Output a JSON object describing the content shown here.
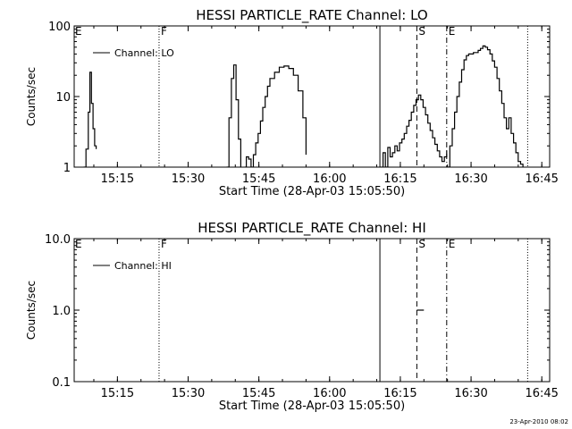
{
  "chart_data": [
    {
      "type": "line",
      "title": "HESSI PARTICLE_RATE Channel: LO",
      "xlabel": "Start Time (28-Apr-03 15:05:50)",
      "ylabel": "Counts/sec",
      "yscale": "log",
      "ylim": [
        1,
        100
      ],
      "xlim": [
        "15:05:50",
        "16:46:40"
      ],
      "x_ticks": [
        "15:15",
        "15:30",
        "15:45",
        "16:00",
        "16:15",
        "16:30",
        "16:45"
      ],
      "y_ticks": [
        "1",
        "10",
        "100"
      ],
      "legend": {
        "entries": [
          "Channel: LO"
        ],
        "position": "top-left"
      },
      "grid": false,
      "event_lines": [
        {
          "time": "15:23:50",
          "label": "F",
          "style": "dotted"
        },
        {
          "time": "16:10:40",
          "label": "",
          "style": "solid"
        },
        {
          "time": "16:18:30",
          "label": "S",
          "style": "dashed"
        },
        {
          "time": "16:24:50",
          "label": "E",
          "style": "dash-dot"
        },
        {
          "time": "16:42:00",
          "label": "",
          "style": "dotted"
        }
      ],
      "edge_label": "E",
      "series": [
        {
          "name": "Channel: LO",
          "segments": [
            {
              "x": [
                "15:07:50",
                "15:08:20",
                "15:08:50",
                "15:09:10",
                "15:09:30",
                "15:09:50",
                "15:10:10",
                "15:10:30"
              ],
              "y": [
                1.0,
                1.8,
                6.0,
                22.0,
                8.0,
                3.5,
                2.0,
                1.8
              ]
            },
            {
              "x": [
                "15:38:10",
                "15:38:40",
                "15:39:10",
                "15:39:40",
                "15:40:10",
                "15:40:40",
                "15:41:10"
              ],
              "y": [
                1.0,
                5.0,
                18.0,
                28.0,
                9.0,
                2.5,
                1.0
              ]
            },
            {
              "x": [
                "15:42:00",
                "15:42:20",
                "15:42:50",
                "15:43:20",
                "15:43:50",
                "15:44:20",
                "15:44:50",
                "15:45:20",
                "15:45:50",
                "15:46:20",
                "15:46:50",
                "15:47:20",
                "15:48:20",
                "15:49:20",
                "15:50:20",
                "15:51:20",
                "15:52:20",
                "15:53:20",
                "15:54:20",
                "15:55:00"
              ],
              "y": [
                1.0,
                1.4,
                1.3,
                1.0,
                1.5,
                2.2,
                3.0,
                4.5,
                7.0,
                10.0,
                14.0,
                18.0,
                22.0,
                26.0,
                27.0,
                25.0,
                20.0,
                12.0,
                5.0,
                1.5
              ]
            },
            {
              "x": [
                "16:10:50",
                "16:11:20",
                "16:11:50",
                "16:12:20",
                "16:12:50",
                "16:13:20",
                "16:13:50",
                "16:14:20",
                "16:14:50",
                "16:15:20",
                "16:15:50",
                "16:16:20",
                "16:16:50",
                "16:17:20",
                "16:17:50",
                "16:18:20",
                "16:18:50",
                "16:19:20",
                "16:19:50",
                "16:20:20",
                "16:20:50",
                "16:21:20",
                "16:21:50",
                "16:22:20",
                "16:22:50",
                "16:23:20",
                "16:23:50",
                "16:24:20",
                "16:24:50"
              ],
              "y": [
                1.0,
                1.6,
                1.0,
                1.9,
                1.4,
                1.6,
                2.0,
                1.7,
                2.2,
                2.5,
                3.0,
                3.8,
                4.6,
                6.0,
                7.5,
                9.0,
                10.5,
                9.0,
                7.0,
                5.5,
                4.2,
                3.3,
                2.6,
                2.1,
                1.7,
                1.4,
                1.2,
                1.4,
                1.7
              ]
            },
            {
              "x": [
                "16:25:00",
                "16:25:30",
                "16:26:00",
                "16:26:30",
                "16:27:00",
                "16:27:30",
                "16:28:00",
                "16:28:30",
                "16:29:00",
                "16:29:30",
                "16:30:00",
                "16:30:30",
                "16:31:00",
                "16:31:30",
                "16:32:00",
                "16:32:30",
                "16:33:00",
                "16:33:30",
                "16:34:00",
                "16:34:30",
                "16:35:00",
                "16:35:30",
                "16:36:00",
                "16:36:30",
                "16:37:00",
                "16:37:30",
                "16:38:00",
                "16:38:30",
                "16:39:00",
                "16:39:30",
                "16:40:00",
                "16:40:30",
                "16:41:00"
              ],
              "y": [
                1.0,
                2.0,
                3.5,
                6.0,
                10.0,
                16.0,
                24.0,
                33.0,
                38.0,
                40.0,
                40.0,
                42.0,
                42.0,
                45.0,
                48.0,
                52.0,
                50.0,
                46.0,
                40.0,
                32.0,
                26.0,
                18.0,
                12.0,
                8.0,
                5.0,
                3.5,
                5.0,
                3.0,
                2.2,
                1.6,
                1.2,
                1.1,
                1.0
              ]
            }
          ]
        }
      ]
    },
    {
      "type": "line",
      "title": "HESSI PARTICLE_RATE Channel: HI",
      "xlabel": "Start Time (28-Apr-03 15:05:50)",
      "ylabel": "Counts/sec",
      "yscale": "log",
      "ylim": [
        0.1,
        10
      ],
      "xlim": [
        "15:05:50",
        "16:46:40"
      ],
      "x_ticks": [
        "15:15",
        "15:30",
        "15:45",
        "16:00",
        "16:15",
        "16:30",
        "16:45"
      ],
      "y_ticks": [
        "0.1",
        "1.0",
        "10.0"
      ],
      "legend": {
        "entries": [
          "Channel: HI"
        ],
        "position": "top-left"
      },
      "grid": false,
      "event_lines": [
        {
          "time": "15:23:50",
          "label": "F",
          "style": "dotted"
        },
        {
          "time": "16:10:40",
          "label": "",
          "style": "solid"
        },
        {
          "time": "16:18:30",
          "label": "S",
          "style": "dashed"
        },
        {
          "time": "16:24:50",
          "label": "E",
          "style": "dash-dot"
        },
        {
          "time": "16:42:00",
          "label": "",
          "style": "dotted"
        }
      ],
      "edge_label": "E",
      "series": [
        {
          "name": "Channel: HI",
          "segments": [
            {
              "x": [
                "16:18:30",
                "16:20:00"
              ],
              "y": [
                1.0,
                1.0
              ]
            }
          ]
        }
      ]
    }
  ],
  "footer": {
    "timestamp": "23-Apr-2010 08:02"
  }
}
